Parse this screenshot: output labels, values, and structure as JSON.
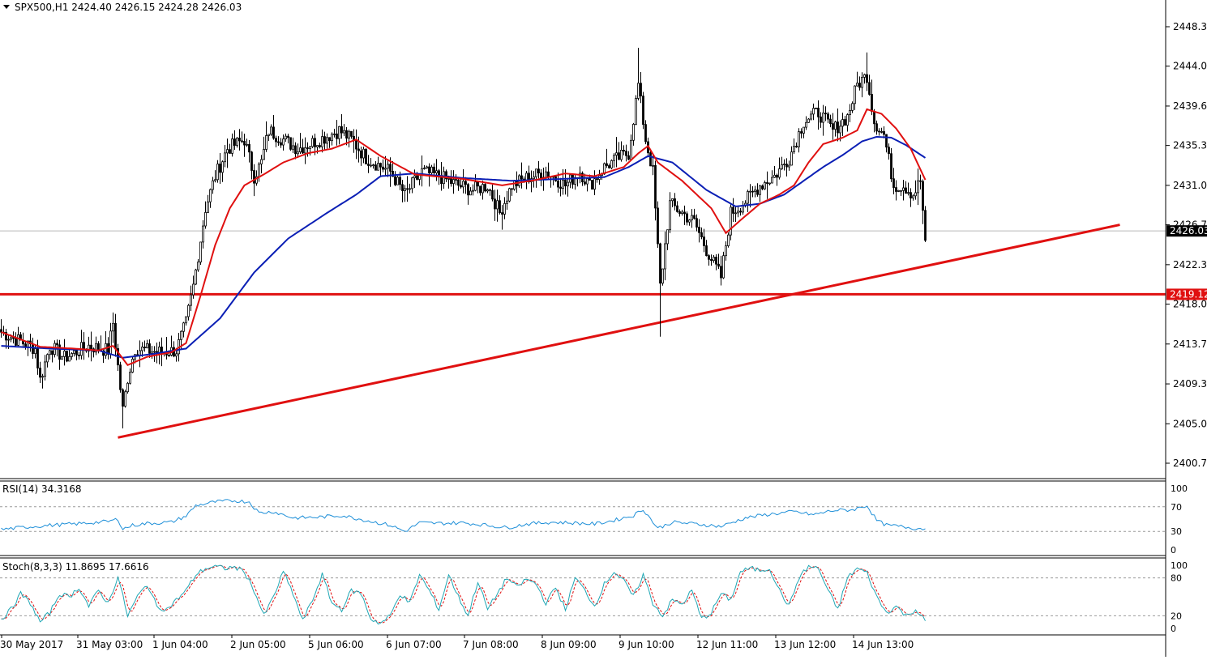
{
  "chart_data": {
    "type": "candlestick",
    "symbol_header": "SPX500,H1  2424.40 2426.15 2424.28 2426.03",
    "main_y_ticks": [
      "2448.30",
      "2444.00",
      "2439.65",
      "2435.35",
      "2431.00",
      "2426.70",
      "2422.35",
      "2418.05",
      "2413.70",
      "2409.35",
      "2405.00",
      "2400.70"
    ],
    "main_y_tick_values": [
      2448.3,
      2444.0,
      2439.65,
      2435.35,
      2431.0,
      2426.7,
      2422.35,
      2418.05,
      2413.7,
      2409.35,
      2405.0,
      2400.7
    ],
    "x_ticks": [
      "30 May 2017",
      "31 May 03:00",
      "1 Jun 04:00",
      "2 Jun 05:00",
      "5 Jun 06:00",
      "6 Jun 07:00",
      "7 Jun 08:00",
      "8 Jun 09:00",
      "9 Jun 10:00",
      "12 Jun 11:00",
      "13 Jun 12:00",
      "14 Jun 13:00"
    ],
    "current_price_label": "2426.03",
    "current_price": 2426.03,
    "level_line_label": "2419.12",
    "level_line_value": 2419.12,
    "trendline": {
      "from": {
        "bar": 48,
        "price": 2403.5
      },
      "to": {
        "bar": 460,
        "price": 2426.7
      }
    },
    "close_anchors": [
      [
        0,
        2415.0
      ],
      [
        14,
        2413.2
      ],
      [
        16,
        2409.8
      ],
      [
        20,
        2413.5
      ],
      [
        26,
        2412.2
      ],
      [
        36,
        2413.5
      ],
      [
        44,
        2413.0
      ],
      [
        46,
        2416.0
      ],
      [
        50,
        2406.5
      ],
      [
        52,
        2410.0
      ],
      [
        55,
        2413.2
      ],
      [
        60,
        2413.0
      ],
      [
        66,
        2412.8
      ],
      [
        72,
        2413.0
      ],
      [
        76,
        2416.0
      ],
      [
        79,
        2420.0
      ],
      [
        84,
        2428.5
      ],
      [
        88,
        2432.0
      ],
      [
        93,
        2435.0
      ],
      [
        100,
        2436.0
      ],
      [
        104,
        2432.0
      ],
      [
        107,
        2433.5
      ],
      [
        110,
        2437.0
      ],
      [
        116,
        2436.0
      ],
      [
        122,
        2435.0
      ],
      [
        131,
        2436.0
      ],
      [
        139,
        2437.0
      ],
      [
        144,
        2436.0
      ],
      [
        150,
        2434.0
      ],
      [
        160,
        2432.5
      ],
      [
        166,
        2430.0
      ],
      [
        173,
        2432.5
      ],
      [
        180,
        2432.0
      ],
      [
        188,
        2431.0
      ],
      [
        194,
        2430.5
      ],
      [
        200,
        2431.0
      ],
      [
        205,
        2428.0
      ],
      [
        210,
        2431.0
      ],
      [
        216,
        2431.8
      ],
      [
        224,
        2432.5
      ],
      [
        232,
        2431.0
      ],
      [
        238,
        2432.5
      ],
      [
        242,
        2431.0
      ],
      [
        248,
        2433.0
      ],
      [
        254,
        2434.0
      ],
      [
        258,
        2434.5
      ],
      [
        262,
        2442.0
      ],
      [
        265,
        2436.0
      ],
      [
        268,
        2432.5
      ],
      [
        271,
        2420.0
      ],
      [
        275,
        2429.0
      ],
      [
        280,
        2428.0
      ],
      [
        285,
        2427.0
      ],
      [
        290,
        2424.0
      ],
      [
        296,
        2421.0
      ],
      [
        300,
        2428.0
      ],
      [
        305,
        2429.0
      ],
      [
        312,
        2431.0
      ],
      [
        318,
        2432.0
      ],
      [
        324,
        2434.0
      ],
      [
        330,
        2438.0
      ],
      [
        336,
        2439.0
      ],
      [
        342,
        2437.0
      ],
      [
        348,
        2438.5
      ],
      [
        352,
        2442.0
      ],
      [
        356,
        2443.0
      ],
      [
        359,
        2438.0
      ],
      [
        363,
        2436.5
      ],
      [
        367,
        2431.0
      ],
      [
        371,
        2431.0
      ],
      [
        375,
        2430.0
      ],
      [
        378,
        2431.5
      ],
      [
        380,
        2425.0
      ]
    ],
    "ma_red_anchors": [
      [
        0,
        2415.0
      ],
      [
        16,
        2413.4
      ],
      [
        30,
        2413.2
      ],
      [
        40,
        2413.0
      ],
      [
        46,
        2413.5
      ],
      [
        52,
        2411.4
      ],
      [
        60,
        2412.3
      ],
      [
        70,
        2412.8
      ],
      [
        76,
        2413.8
      ],
      [
        82,
        2419.0
      ],
      [
        88,
        2424.5
      ],
      [
        94,
        2428.5
      ],
      [
        100,
        2431.0
      ],
      [
        108,
        2432.2
      ],
      [
        116,
        2433.5
      ],
      [
        126,
        2434.5
      ],
      [
        136,
        2435.0
      ],
      [
        146,
        2436.0
      ],
      [
        156,
        2434.2
      ],
      [
        170,
        2432.2
      ],
      [
        190,
        2431.7
      ],
      [
        206,
        2431.0
      ],
      [
        220,
        2431.6
      ],
      [
        232,
        2432.3
      ],
      [
        244,
        2432.0
      ],
      [
        256,
        2433.0
      ],
      [
        262,
        2434.5
      ],
      [
        266,
        2435.3
      ],
      [
        270,
        2433.5
      ],
      [
        280,
        2431.5
      ],
      [
        292,
        2428.5
      ],
      [
        298,
        2425.8
      ],
      [
        304,
        2427.2
      ],
      [
        312,
        2429.0
      ],
      [
        320,
        2430.0
      ],
      [
        326,
        2431.0
      ],
      [
        332,
        2433.5
      ],
      [
        338,
        2435.5
      ],
      [
        346,
        2436.2
      ],
      [
        352,
        2437.0
      ],
      [
        356,
        2439.3
      ],
      [
        362,
        2438.8
      ],
      [
        368,
        2437.2
      ],
      [
        374,
        2435.0
      ],
      [
        380,
        2431.6
      ]
    ],
    "ma_blue_anchors": [
      [
        0,
        2413.5
      ],
      [
        20,
        2413.2
      ],
      [
        40,
        2413.0
      ],
      [
        50,
        2412.2
      ],
      [
        62,
        2412.6
      ],
      [
        76,
        2413.2
      ],
      [
        90,
        2416.5
      ],
      [
        104,
        2421.5
      ],
      [
        118,
        2425.2
      ],
      [
        134,
        2428.0
      ],
      [
        146,
        2430.0
      ],
      [
        156,
        2432.0
      ],
      [
        170,
        2432.3
      ],
      [
        190,
        2431.8
      ],
      [
        210,
        2431.5
      ],
      [
        230,
        2431.7
      ],
      [
        248,
        2431.9
      ],
      [
        258,
        2433.0
      ],
      [
        266,
        2434.2
      ],
      [
        276,
        2433.5
      ],
      [
        290,
        2430.5
      ],
      [
        302,
        2428.7
      ],
      [
        312,
        2429.0
      ],
      [
        322,
        2430.0
      ],
      [
        330,
        2431.5
      ],
      [
        338,
        2433.0
      ],
      [
        346,
        2434.3
      ],
      [
        354,
        2435.8
      ],
      [
        360,
        2436.3
      ],
      [
        366,
        2436.2
      ],
      [
        372,
        2435.4
      ],
      [
        380,
        2434.0
      ]
    ],
    "rsi": {
      "label": "RSI(14) 34.3168",
      "value": 34.3168,
      "y_ticks": [
        "100",
        "70",
        "30",
        "0"
      ],
      "y_tick_values": [
        100,
        70,
        30,
        0
      ],
      "levels": [
        70,
        30
      ],
      "anchors": [
        [
          0,
          33
        ],
        [
          10,
          37
        ],
        [
          20,
          40
        ],
        [
          30,
          42
        ],
        [
          40,
          45
        ],
        [
          44,
          46
        ],
        [
          48,
          50
        ],
        [
          50,
          34
        ],
        [
          54,
          40
        ],
        [
          60,
          43
        ],
        [
          70,
          45
        ],
        [
          76,
          55
        ],
        [
          80,
          72
        ],
        [
          88,
          78
        ],
        [
          96,
          80
        ],
        [
          102,
          78
        ],
        [
          106,
          60
        ],
        [
          112,
          62
        ],
        [
          120,
          52
        ],
        [
          130,
          53
        ],
        [
          140,
          56
        ],
        [
          150,
          48
        ],
        [
          160,
          40
        ],
        [
          166,
          30
        ],
        [
          172,
          44
        ],
        [
          180,
          43
        ],
        [
          190,
          44
        ],
        [
          200,
          40
        ],
        [
          208,
          36
        ],
        [
          216,
          42
        ],
        [
          226,
          45
        ],
        [
          234,
          44
        ],
        [
          244,
          42
        ],
        [
          252,
          48
        ],
        [
          260,
          56
        ],
        [
          264,
          66
        ],
        [
          270,
          35
        ],
        [
          276,
          45
        ],
        [
          286,
          42
        ],
        [
          296,
          38
        ],
        [
          306,
          52
        ],
        [
          316,
          58
        ],
        [
          326,
          62
        ],
        [
          334,
          57
        ],
        [
          342,
          64
        ],
        [
          350,
          65
        ],
        [
          356,
          72
        ],
        [
          360,
          48
        ],
        [
          364,
          40
        ],
        [
          370,
          38
        ],
        [
          376,
          35
        ],
        [
          380,
          34.3
        ]
      ]
    },
    "stoch": {
      "label": "Stoch(8,3,3) 11.8695 17.6616",
      "main_value": 11.8695,
      "signal_value": 17.6616,
      "y_ticks": [
        "100",
        "80",
        "20",
        "0"
      ],
      "y_tick_values": [
        100,
        80,
        20,
        0
      ],
      "levels": [
        80,
        20
      ],
      "anchors": [
        [
          0,
          15
        ],
        [
          4,
          30
        ],
        [
          8,
          55
        ],
        [
          12,
          40
        ],
        [
          16,
          10
        ],
        [
          20,
          25
        ],
        [
          24,
          55
        ],
        [
          28,
          50
        ],
        [
          32,
          65
        ],
        [
          36,
          35
        ],
        [
          40,
          60
        ],
        [
          44,
          40
        ],
        [
          48,
          82
        ],
        [
          52,
          20
        ],
        [
          56,
          50
        ],
        [
          60,
          70
        ],
        [
          64,
          35
        ],
        [
          68,
          30
        ],
        [
          72,
          45
        ],
        [
          76,
          60
        ],
        [
          80,
          85
        ],
        [
          84,
          95
        ],
        [
          88,
          98
        ],
        [
          92,
          95
        ],
        [
          96,
          97
        ],
        [
          100,
          90
        ],
        [
          104,
          60
        ],
        [
          108,
          20
        ],
        [
          112,
          50
        ],
        [
          116,
          90
        ],
        [
          120,
          55
        ],
        [
          124,
          12
        ],
        [
          128,
          45
        ],
        [
          132,
          85
        ],
        [
          136,
          40
        ],
        [
          140,
          30
        ],
        [
          144,
          60
        ],
        [
          148,
          55
        ],
        [
          152,
          15
        ],
        [
          156,
          8
        ],
        [
          160,
          20
        ],
        [
          164,
          55
        ],
        [
          168,
          40
        ],
        [
          172,
          85
        ],
        [
          176,
          60
        ],
        [
          180,
          30
        ],
        [
          184,
          85
        ],
        [
          188,
          50
        ],
        [
          192,
          20
        ],
        [
          196,
          75
        ],
        [
          200,
          30
        ],
        [
          204,
          55
        ],
        [
          208,
          80
        ],
        [
          212,
          65
        ],
        [
          216,
          78
        ],
        [
          220,
          70
        ],
        [
          224,
          40
        ],
        [
          228,
          65
        ],
        [
          232,
          30
        ],
        [
          236,
          80
        ],
        [
          240,
          60
        ],
        [
          244,
          35
        ],
        [
          248,
          70
        ],
        [
          252,
          90
        ],
        [
          256,
          75
        ],
        [
          260,
          50
        ],
        [
          264,
          85
        ],
        [
          268,
          40
        ],
        [
          272,
          20
        ],
        [
          276,
          45
        ],
        [
          280,
          38
        ],
        [
          284,
          60
        ],
        [
          288,
          15
        ],
        [
          292,
          25
        ],
        [
          296,
          55
        ],
        [
          300,
          45
        ],
        [
          304,
          90
        ],
        [
          308,
          95
        ],
        [
          312,
          92
        ],
        [
          316,
          95
        ],
        [
          320,
          60
        ],
        [
          324,
          35
        ],
        [
          328,
          80
        ],
        [
          332,
          98
        ],
        [
          336,
          95
        ],
        [
          340,
          60
        ],
        [
          344,
          30
        ],
        [
          348,
          80
        ],
        [
          352,
          95
        ],
        [
          356,
          88
        ],
        [
          360,
          50
        ],
        [
          364,
          25
        ],
        [
          368,
          35
        ],
        [
          372,
          20
        ],
        [
          376,
          30
        ],
        [
          380,
          11.9
        ]
      ]
    },
    "colors": {
      "background": "#ffffff",
      "candle": "#000000",
      "ma_fast": "#e01010",
      "ma_slow": "#0b1fb5",
      "level_line": "#e01010",
      "trendline": "#e01010",
      "level_tag_bg": "#e01010",
      "price_tag_bg": "#000000",
      "rsi": "#1e8fd8",
      "stoch_main": "#1fa7b5",
      "stoch_signal": "#e01010",
      "grid_dotted": "#9a9a9a",
      "axis": "#000000"
    }
  }
}
